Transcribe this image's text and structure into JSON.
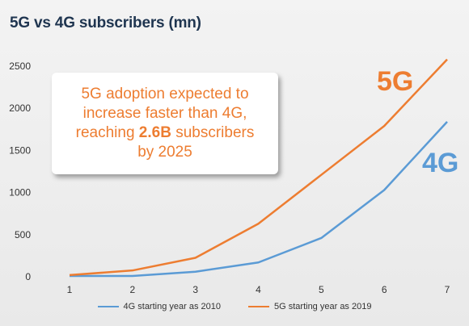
{
  "chart_data": {
    "type": "line",
    "title": "5G vs 4G subscribers (mn)",
    "x": [
      1,
      2,
      3,
      4,
      5,
      6,
      7
    ],
    "xlim": [
      1,
      7
    ],
    "ylim": [
      0,
      2500
    ],
    "yticks": [
      0,
      500,
      1000,
      1500,
      2000,
      2500
    ],
    "grid": false,
    "legend": "bottom",
    "series": [
      {
        "name": "4G starting year as 2010",
        "color": "#5b9bd5",
        "values": [
          10,
          10,
          60,
          170,
          460,
          1030,
          1840
        ],
        "big_label": "4G"
      },
      {
        "name": "5G starting year as 2019",
        "color": "#ed7d31",
        "values": [
          20,
          75,
          225,
          630,
          1210,
          1790,
          2580
        ],
        "big_label": "5G"
      }
    ],
    "annotation": {
      "line1": "5G adoption expected to",
      "line2": "increase faster than 4G,",
      "line3_pre": "reaching ",
      "line3_bold": "2.6B",
      "line3_post": " subscribers",
      "line4": "by 2025"
    }
  }
}
